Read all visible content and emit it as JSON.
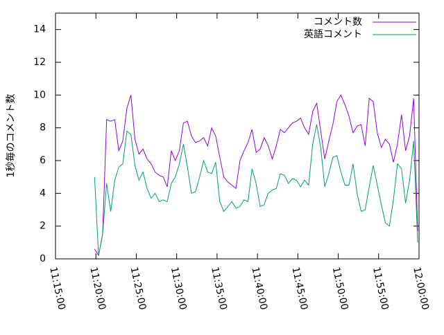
{
  "chart_data": {
    "type": "line",
    "y_label": "1秒毎のコメント数",
    "x": [
      "11:19:50",
      "11:20:20",
      "11:20:50",
      "11:21:20",
      "11:21:50",
      "11:22:20",
      "11:22:50",
      "11:23:20",
      "11:23:50",
      "11:24:20",
      "11:24:50",
      "11:25:20",
      "11:25:50",
      "11:26:20",
      "11:26:50",
      "11:27:20",
      "11:27:50",
      "11:28:20",
      "11:28:50",
      "11:29:20",
      "11:29:50",
      "11:30:20",
      "11:30:50",
      "11:31:20",
      "11:31:50",
      "11:32:20",
      "11:32:50",
      "11:33:20",
      "11:33:50",
      "11:34:20",
      "11:34:50",
      "11:35:20",
      "11:35:50",
      "11:36:20",
      "11:36:50",
      "11:37:20",
      "11:37:50",
      "11:38:20",
      "11:38:50",
      "11:39:20",
      "11:39:50",
      "11:40:20",
      "11:40:50",
      "11:41:20",
      "11:41:50",
      "11:42:20",
      "11:42:50",
      "11:43:20",
      "11:43:50",
      "11:44:20",
      "11:44:50",
      "11:45:20",
      "11:45:50",
      "11:46:20",
      "11:46:50",
      "11:47:20",
      "11:47:50",
      "11:48:20",
      "11:48:50",
      "11:49:20",
      "11:49:50",
      "11:50:20",
      "11:50:50",
      "11:51:20",
      "11:51:50",
      "11:52:20",
      "11:52:50",
      "11:53:20",
      "11:53:50",
      "11:54:20",
      "11:54:50",
      "11:55:20",
      "11:55:50",
      "11:56:20",
      "11:56:50",
      "11:57:20",
      "11:57:50",
      "11:58:20",
      "11:58:50",
      "11:59:20",
      "11:59:50"
    ],
    "series": [
      {
        "name": "コメント数",
        "color": "#9400d3",
        "values": [
          0.6,
          0.2,
          1.5,
          8.5,
          8.4,
          8.5,
          6.6,
          7.2,
          9.2,
          10,
          7.3,
          6.4,
          6.7,
          6.1,
          5.8,
          5.3,
          5.1,
          5,
          4.4,
          6.6,
          6,
          6.6,
          8.3,
          8.4,
          7.5,
          7.1,
          7.2,
          7.4,
          6.9,
          8,
          7.5,
          6.2,
          5,
          4.7,
          4.5,
          4.3,
          6,
          6.6,
          7.1,
          7.9,
          6.5,
          6.7,
          7.4,
          6.9,
          6.1,
          6.9,
          7.9,
          7.7,
          8,
          8.3,
          8.4,
          8.6,
          8,
          7.6,
          9,
          9.5,
          7.8,
          6.1,
          7.2,
          8.2,
          9.6,
          10,
          9.4,
          8.7,
          7.7,
          8.1,
          8.2,
          6.9,
          9.8,
          9.6,
          7.7,
          6.8,
          7.3,
          7,
          5.9,
          7,
          8.8,
          6.6,
          7.5,
          9.8,
          1.7
        ]
      },
      {
        "name": "英語コメント",
        "color": "#009e73",
        "values": [
          5,
          0.2,
          1.5,
          4.6,
          2.9,
          4.8,
          5.6,
          5.8,
          7.8,
          7.6,
          5.7,
          4.8,
          5.3,
          4.3,
          3.7,
          4,
          3.5,
          3.6,
          3.5,
          4.6,
          5,
          5.8,
          7,
          5.6,
          4,
          4.1,
          5,
          6,
          5.3,
          5.2,
          5.9,
          3.5,
          2.9,
          3.2,
          3.5,
          3.1,
          3.2,
          3.6,
          3.5,
          5.5,
          4.6,
          3.2,
          3.3,
          4,
          4.2,
          4.3,
          5.2,
          5.1,
          4.6,
          4.9,
          4.8,
          4.4,
          4.8,
          4.5,
          7,
          8.2,
          6.8,
          4.4,
          5.2,
          6.2,
          6.3,
          5.3,
          4.5,
          4.5,
          5.8,
          4,
          2.9,
          3,
          4.4,
          5.7,
          4.5,
          3.3,
          2.2,
          2,
          3.6,
          5.8,
          5.5,
          3.4,
          4.8,
          7.2,
          1
        ]
      }
    ],
    "xlim": [
      "11:15:00",
      "12:00:00"
    ],
    "xticks": [
      "11:15:00",
      "11:20:00",
      "11:25:00",
      "11:30:00",
      "11:35:00",
      "11:40:00",
      "11:45:00",
      "11:50:00",
      "11:55:00",
      "12:00:00"
    ],
    "ylim": [
      0,
      15
    ],
    "yticks": [
      0,
      2,
      4,
      6,
      8,
      10,
      12,
      14
    ],
    "legend": "top-right"
  }
}
